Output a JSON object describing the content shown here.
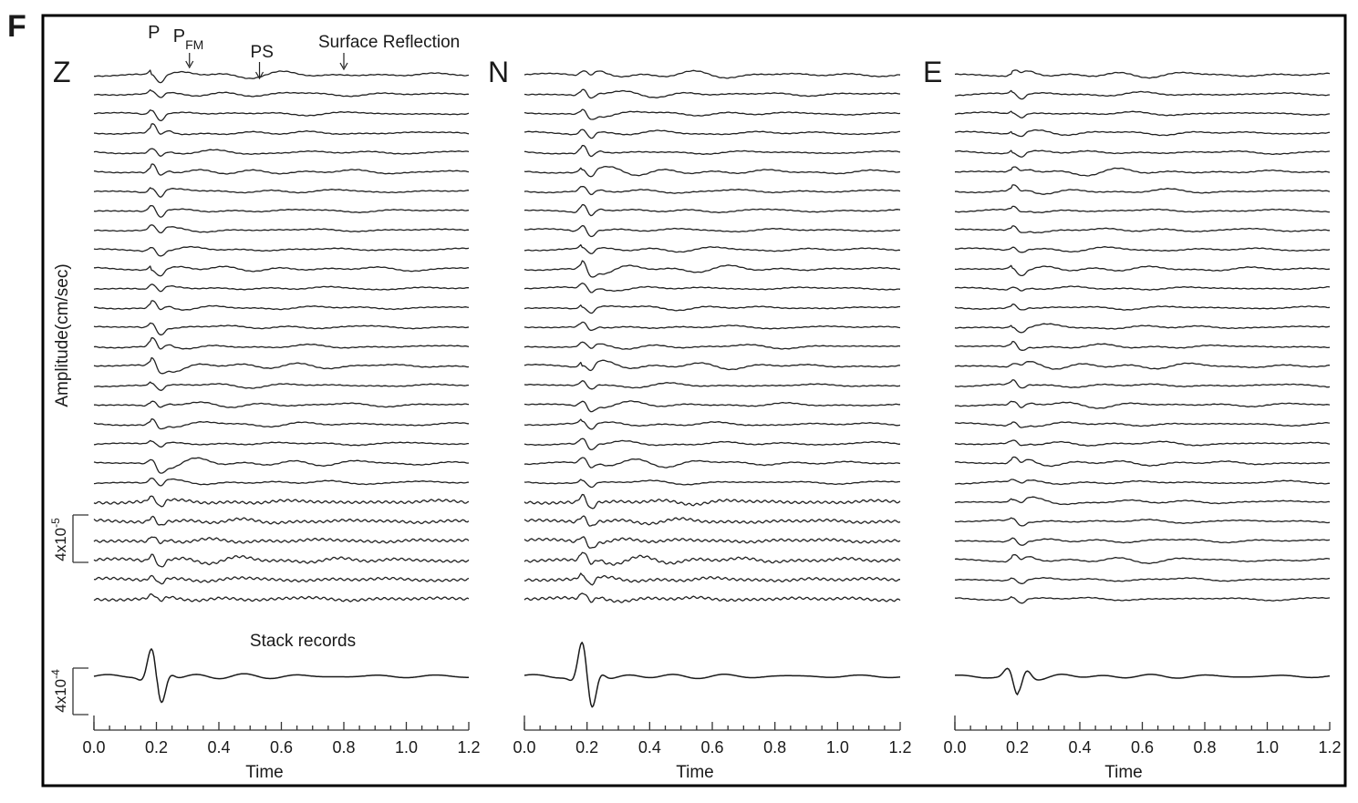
{
  "figure_label": "F",
  "y_axis_label": "Amplitude(cm/sec)",
  "stack_label": "Stack records",
  "scale_bar_upper": "4x10-5",
  "scale_bar_lower": "4x10-4",
  "annotations": [
    {
      "text": "P",
      "time": 0.19
    },
    {
      "text": "PFM",
      "time": 0.3
    },
    {
      "text": "PS",
      "time": 0.53
    },
    {
      "text": "Surface Reflection",
      "time": 0.8
    }
  ],
  "chart_data": [
    {
      "type": "line",
      "component": "Z",
      "traces": 28,
      "p_arrival": 0.2,
      "xlabel": "Time",
      "xlim": [
        0.0,
        1.2
      ],
      "xticks": [
        "0.0",
        "0.2",
        "0.4",
        "0.6",
        "0.8",
        "1.0",
        "1.2"
      ],
      "trace_amplitude_scale": "4x10-5",
      "stack_amplitude_scale": "4x10-4"
    },
    {
      "type": "line",
      "component": "N",
      "traces": 28,
      "p_arrival": 0.2,
      "xlabel": "Time",
      "xlim": [
        0.0,
        1.2
      ],
      "xticks": [
        "0.0",
        "0.2",
        "0.4",
        "0.6",
        "0.8",
        "1.0",
        "1.2"
      ]
    },
    {
      "type": "line",
      "component": "E",
      "traces": 28,
      "p_arrival": 0.2,
      "xlabel": "Time",
      "xlim": [
        0.0,
        1.2
      ],
      "xticks": [
        "0.0",
        "0.2",
        "0.4",
        "0.6",
        "0.8",
        "1.0",
        "1.2"
      ]
    }
  ]
}
